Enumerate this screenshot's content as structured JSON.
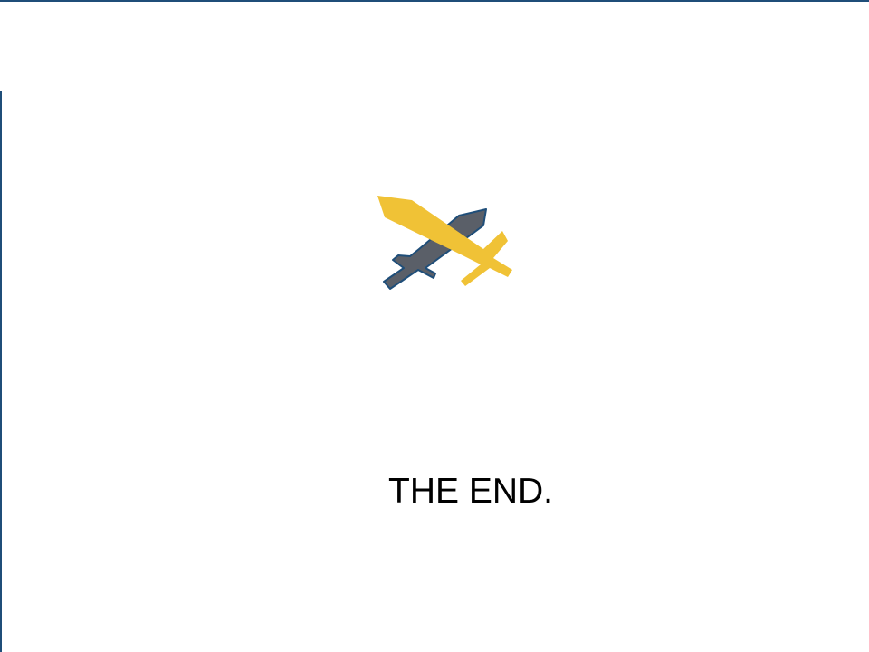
{
  "screen": {
    "end_message": "THE END."
  },
  "emblem": {
    "icon": "crossed-swords-icon",
    "dark_sword_color": "#5a5f68",
    "gold_sword_color": "#f0c236",
    "outline_color": "#1f4e79"
  },
  "frame": {
    "border_color": "#1f4e79",
    "background_color": "#ffffff"
  }
}
